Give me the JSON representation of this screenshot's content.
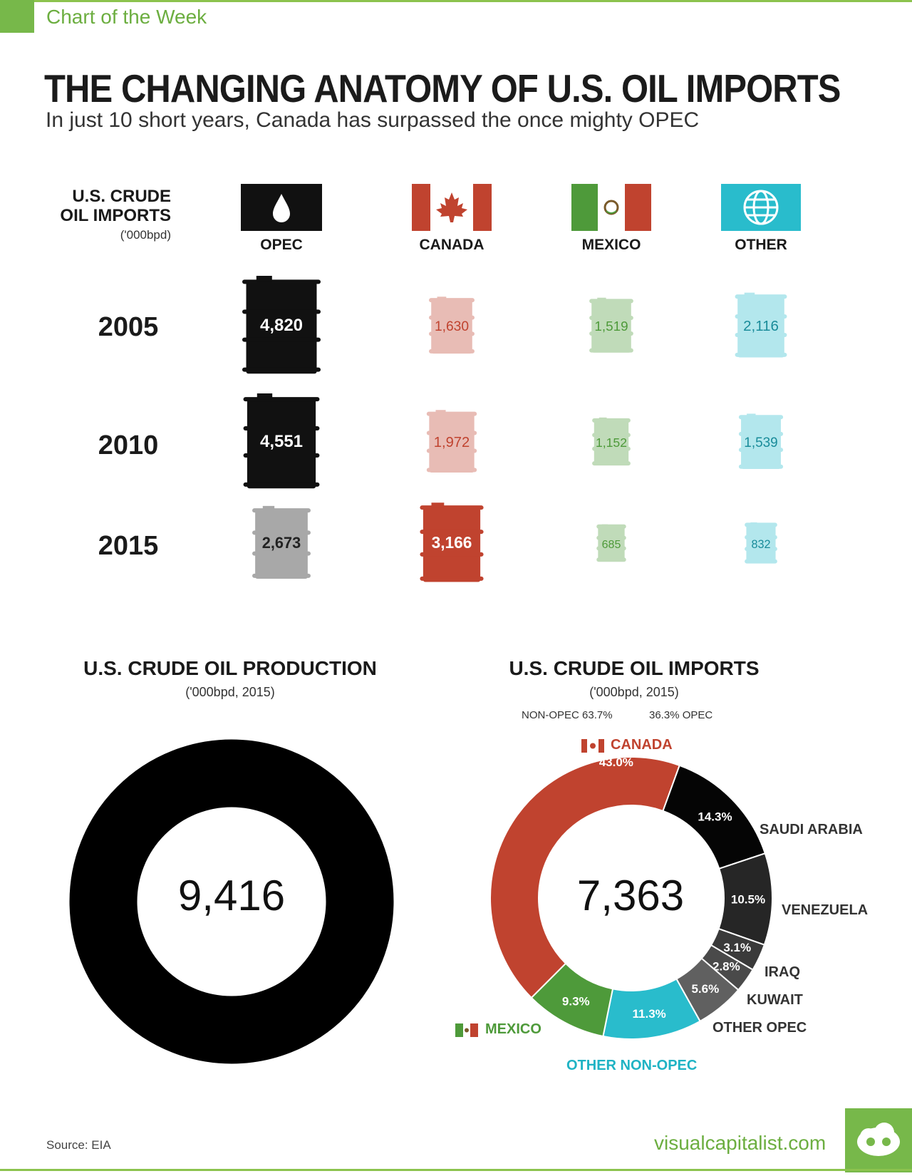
{
  "header": {
    "badge_text": "Chart of the Week",
    "title": "THE CHANGING ANATOMY OF U.S. OIL IMPORTS",
    "subtitle": "In just 10 short years, Canada has surpassed the once mighty OPEC"
  },
  "imports_table": {
    "heading_line1": "U.S. CRUDE",
    "heading_line2": "OIL IMPORTS",
    "unit": "('000bpd)",
    "columns": [
      {
        "label": "OPEC",
        "icon": "oil-drop-icon"
      },
      {
        "label": "CANADA",
        "icon": "canada-flag-icon"
      },
      {
        "label": "MEXICO",
        "icon": "mexico-flag-icon"
      },
      {
        "label": "OTHER",
        "icon": "globe-icon"
      }
    ],
    "years": [
      "2005",
      "2010",
      "2015"
    ]
  },
  "production": {
    "title": "U.S. CRUDE OIL PRODUCTION",
    "unit": "('000bpd, 2015)",
    "total": "9,416"
  },
  "imports_2015": {
    "title": "U.S. CRUDE OIL IMPORTS",
    "unit": "('000bpd, 2015)",
    "non_opec_label": "NON-OPEC 63.7%",
    "opec_label": "36.3% OPEC",
    "total": "7,363",
    "labels": {
      "canada": "CANADA",
      "saudi": "SAUDI ARABIA",
      "venezuela": "VENEZUELA",
      "iraq": "IRAQ",
      "kuwait": "KUWAIT",
      "other_opec": "OTHER OPEC",
      "other_non_opec": "OTHER NON-OPEC",
      "mexico": "MEXICO"
    }
  },
  "footer": {
    "source": "Source: EIA",
    "site": "visualcapitalist.com"
  },
  "colors": {
    "opec": "#111111",
    "canada": "#c0432f",
    "mexico": "#4e9a3a",
    "other": "#29bccc",
    "brand_green": "#77b84a"
  },
  "chart_data": [
    {
      "type": "table",
      "title": "U.S. CRUDE OIL IMPORTS",
      "unit": "('000bpd)",
      "columns": [
        "OPEC",
        "CANADA",
        "MEXICO",
        "OTHER"
      ],
      "rows": [
        {
          "year": "2005",
          "values": [
            4820,
            1630,
            1519,
            2116
          ],
          "labels": [
            "4,820",
            "1,630",
            "1,519",
            "2,116"
          ]
        },
        {
          "year": "2010",
          "values": [
            4551,
            1972,
            1152,
            1539
          ],
          "labels": [
            "4,551",
            "1,972",
            "1,152",
            "1,539"
          ]
        },
        {
          "year": "2015",
          "values": [
            2673,
            3166,
            685,
            832
          ],
          "labels": [
            "2,673",
            "3,166",
            "685",
            "832"
          ]
        }
      ]
    },
    {
      "type": "pie",
      "title": "U.S. CRUDE OIL PRODUCTION",
      "unit": "('000bpd, 2015)",
      "total": 9416,
      "slices": [
        {
          "name": "",
          "value": 100,
          "color": "#000000"
        }
      ]
    },
    {
      "type": "pie",
      "title": "U.S. CRUDE OIL IMPORTS",
      "unit": "('000bpd, 2015)",
      "total": 7363,
      "groups": [
        {
          "name": "NON-OPEC",
          "value": 63.7
        },
        {
          "name": "OPEC",
          "value": 36.3
        }
      ],
      "slices": [
        {
          "name": "CANADA",
          "value": 43.0,
          "label": "43.0%",
          "color": "#c0432f"
        },
        {
          "name": "SAUDI ARABIA",
          "value": 14.3,
          "label": "14.3%",
          "color": "#050505"
        },
        {
          "name": "VENEZUELA",
          "value": 10.5,
          "label": "10.5%",
          "color": "#262626"
        },
        {
          "name": "IRAQ",
          "value": 3.1,
          "label": "3.1%",
          "color": "#3a3a3a"
        },
        {
          "name": "KUWAIT",
          "value": 2.8,
          "label": "2.8%",
          "color": "#4a4a4a"
        },
        {
          "name": "OTHER OPEC",
          "value": 5.6,
          "label": "5.6%",
          "color": "#606060"
        },
        {
          "name": "OTHER NON-OPEC",
          "value": 11.3,
          "label": "11.3%",
          "color": "#29bccc"
        },
        {
          "name": "MEXICO",
          "value": 9.3,
          "label": "9.3%",
          "color": "#4e9a3a"
        }
      ]
    }
  ]
}
